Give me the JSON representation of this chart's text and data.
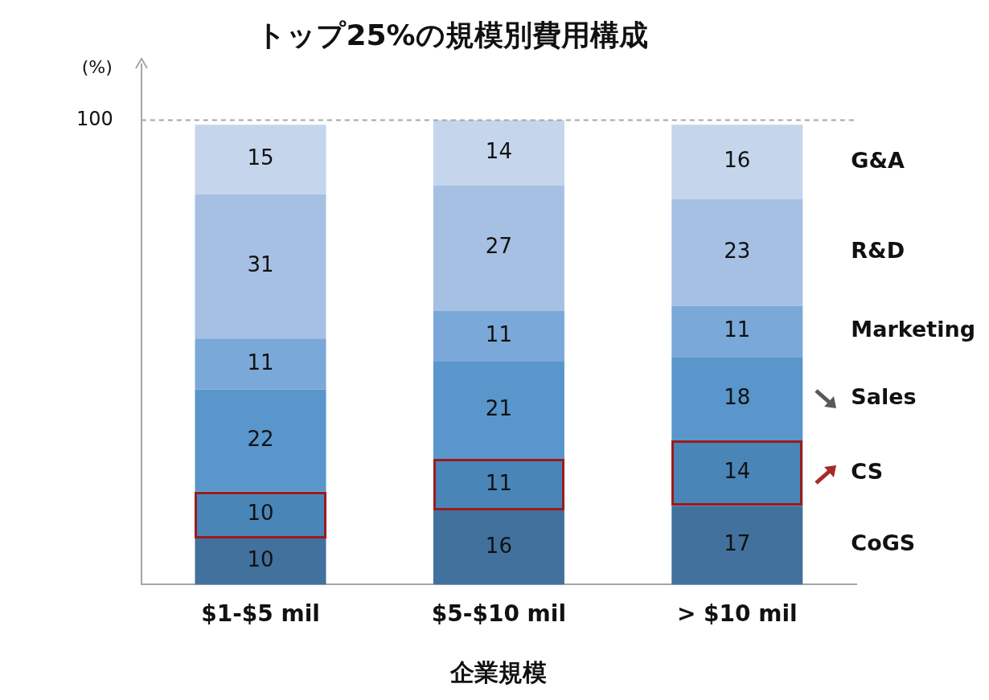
{
  "chart_data": {
    "type": "bar",
    "stacked": true,
    "title": "トップ25%の規模別費用構成",
    "xlabel": "企業規模",
    "ylabel": "(%)",
    "categories": [
      "$1-$5 mil",
      "$5-$10 mil",
      "> $10 mil"
    ],
    "series": [
      {
        "name": "CoGS",
        "color": "#41719c",
        "values": [
          10,
          16,
          17
        ]
      },
      {
        "name": "CS",
        "color": "#4a85b8",
        "values": [
          10,
          11,
          14
        ]
      },
      {
        "name": "Sales",
        "color": "#5896cc",
        "values": [
          22,
          21,
          18
        ]
      },
      {
        "name": "Marketing",
        "color": "#7aa8d8",
        "values": [
          11,
          11,
          11
        ]
      },
      {
        "name": "R&D",
        "color": "#a6c0e3",
        "values": [
          31,
          27,
          23
        ]
      },
      {
        "name": "G&A",
        "color": "#c5d5ec",
        "values": [
          15,
          14,
          16
        ]
      }
    ],
    "ylim": [
      0,
      112
    ],
    "yticks": [
      100
    ],
    "ref_lines": [
      {
        "axis": "y",
        "value": 100,
        "color": "#a6a6a6",
        "line_style": "dashed"
      }
    ],
    "data_labels": true,
    "legend": "right",
    "grid": false
  }
}
